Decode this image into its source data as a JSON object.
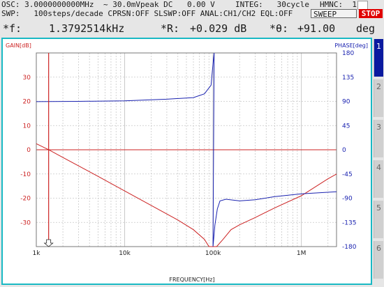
{
  "status_line1": {
    "osc": "OSC: 3.0000000000MHz",
    "amp": "~ 30.0mVpeak DC",
    "dc": "0.00 V",
    "integ": "INTEG:   30cycle",
    "hmnc": "HMNC:  1"
  },
  "status_line2": {
    "swp": "SWP:   100steps/decade CPRSN:OFF SLSWP:OFF ANAL:CH1/CH2 EQL:OFF",
    "sweep_button": "SWEEP",
    "stop_button": "STOP"
  },
  "readouts": {
    "f_label": "*f:",
    "f_value": "1.3792514kHz",
    "r_label": "*R:",
    "r_value": "+0.029 dB",
    "theta_label": "*θ:",
    "theta_value": "+91.00",
    "theta_unit": "deg"
  },
  "side_tabs": [
    "1",
    "2",
    "3",
    "4",
    "5",
    "6"
  ],
  "colors": {
    "gain": "#cc2222",
    "phase": "#1a22b0",
    "border": "#19b9c4",
    "grid": "#c8c8c8"
  },
  "chart_data": {
    "type": "line",
    "xlabel": "FREQUENCY[Hz]",
    "ylabel": "GAIN[dB]",
    "y2label": "PHASE[deg]",
    "x_scale": "log",
    "xlim": [
      1000,
      2500000
    ],
    "ylim": [
      -40,
      40
    ],
    "y2lim": [
      -180,
      180
    ],
    "x_ticks": [
      {
        "v": 1000,
        "label": "1k"
      },
      {
        "v": 10000,
        "label": "10k"
      },
      {
        "v": 100000,
        "label": "100k"
      },
      {
        "v": 1000000,
        "label": "1M"
      }
    ],
    "y_ticks": [
      {
        "v": 30,
        "label": "30"
      },
      {
        "v": 20,
        "label": "20"
      },
      {
        "v": 10,
        "label": "10"
      },
      {
        "v": 0,
        "label": "0"
      },
      {
        "v": -10,
        "label": "-10"
      },
      {
        "v": -20,
        "label": "-20"
      },
      {
        "v": -30,
        "label": "-30"
      }
    ],
    "y2_ticks": [
      {
        "v": 180,
        "label": "180"
      },
      {
        "v": 135,
        "label": "135"
      },
      {
        "v": 90,
        "label": "90"
      },
      {
        "v": 45,
        "label": "45"
      },
      {
        "v": 0,
        "label": "0"
      },
      {
        "v": -45,
        "label": "-45"
      },
      {
        "v": -90,
        "label": "-90"
      },
      {
        "v": -135,
        "label": "-135"
      },
      {
        "v": -180,
        "label": "-180"
      }
    ],
    "cursor_x": 1379.25,
    "grid": true,
    "series": [
      {
        "axis": "left",
        "points": [
          [
            1000,
            2.5
          ],
          [
            1379,
            0.03
          ],
          [
            2000,
            -3.2
          ],
          [
            5000,
            -11
          ],
          [
            10000,
            -17
          ],
          [
            20000,
            -23
          ],
          [
            40000,
            -29
          ],
          [
            60000,
            -33
          ],
          [
            80000,
            -37
          ],
          [
            90000,
            -40
          ],
          [
            110000,
            -40
          ],
          [
            130000,
            -37
          ],
          [
            160000,
            -33
          ],
          [
            200000,
            -31
          ],
          [
            300000,
            -28
          ],
          [
            500000,
            -24
          ],
          [
            1000000,
            -19
          ],
          [
            2000000,
            -12
          ],
          [
            2500000,
            -10
          ]
        ]
      },
      {
        "axis": "right",
        "points": [
          [
            1000,
            89.5
          ],
          [
            3000,
            90
          ],
          [
            10000,
            91
          ],
          [
            30000,
            94
          ],
          [
            60000,
            97
          ],
          [
            80000,
            104
          ],
          [
            95000,
            120
          ],
          [
            100000,
            160
          ],
          [
            103000,
            180
          ],
          [
            100000,
            -180
          ],
          [
            105000,
            -140
          ],
          [
            112000,
            -110
          ],
          [
            120000,
            -95
          ],
          [
            140000,
            -92
          ],
          [
            200000,
            -95
          ],
          [
            300000,
            -93
          ],
          [
            500000,
            -87
          ],
          [
            1000000,
            -82
          ],
          [
            2500000,
            -78
          ]
        ]
      }
    ]
  }
}
